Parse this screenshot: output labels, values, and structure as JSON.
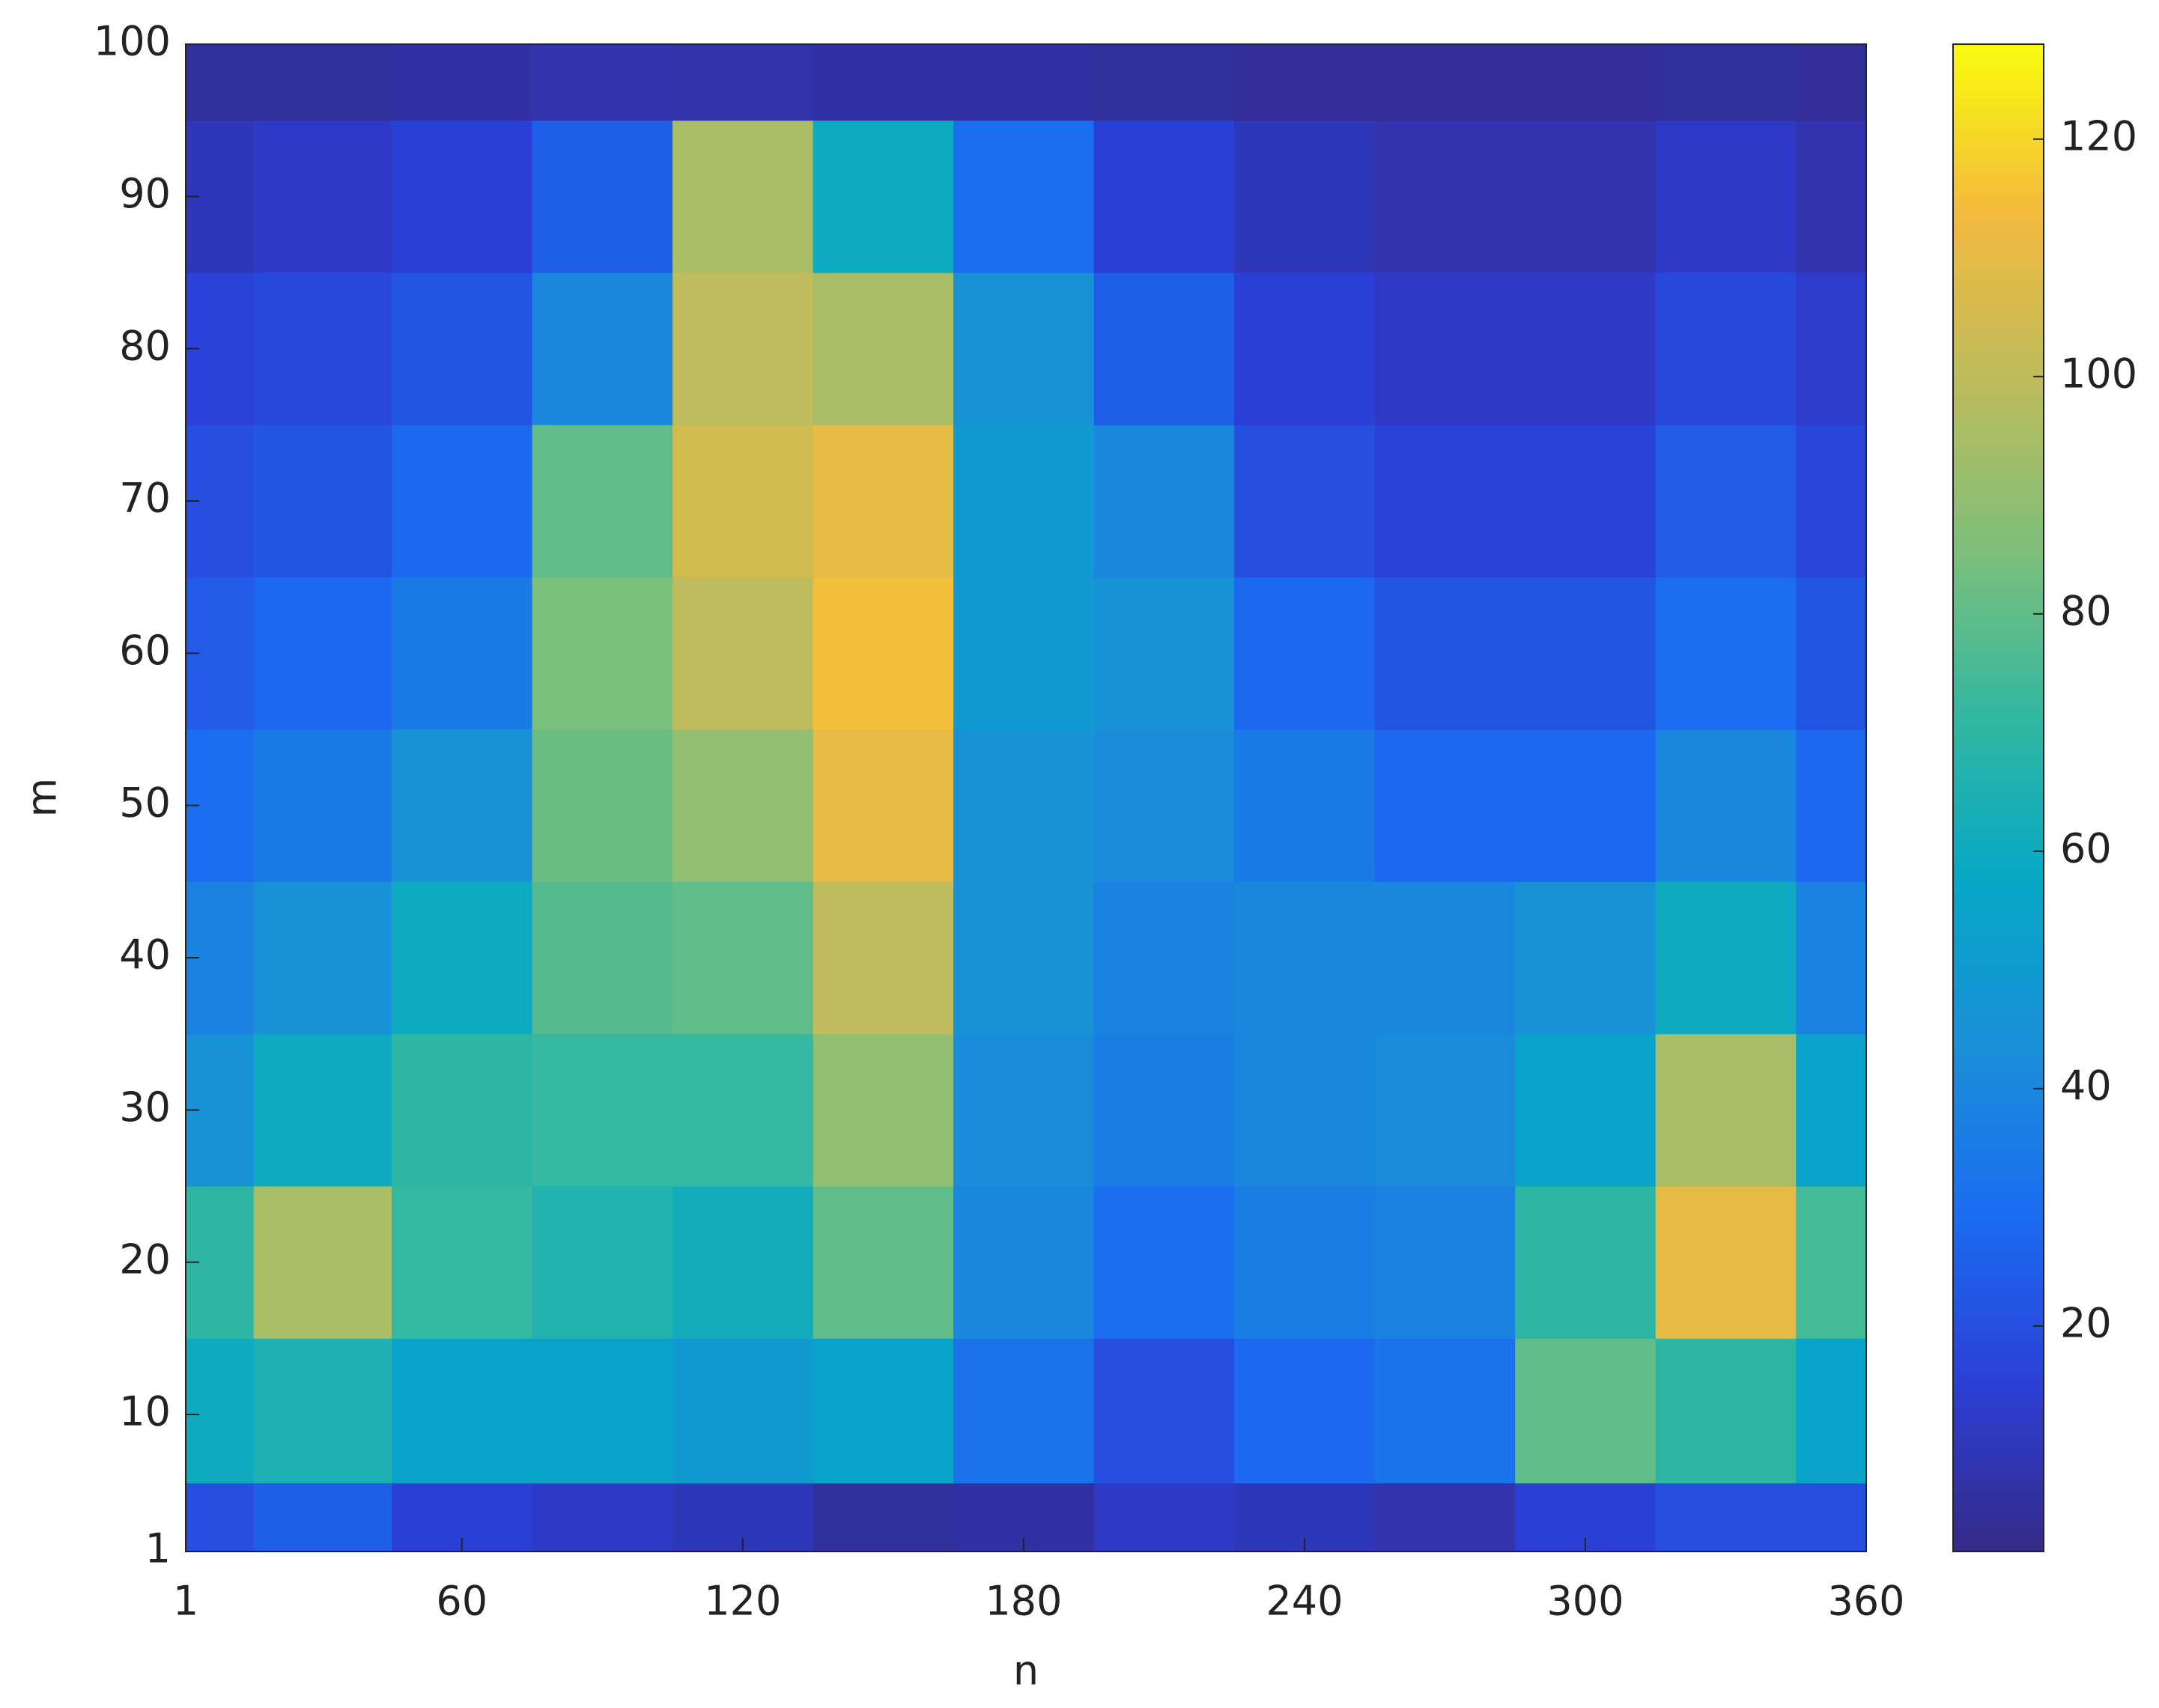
{
  "chart_data": {
    "type": "contourf",
    "xlabel": "n",
    "ylabel": "m",
    "x": [
      1,
      30,
      60,
      90,
      120,
      150,
      180,
      210,
      240,
      270,
      300,
      330,
      360
    ],
    "y": [
      1,
      10,
      20,
      30,
      40,
      50,
      60,
      70,
      80,
      90,
      100
    ],
    "z": [
      [
        20,
        25,
        15,
        12,
        10,
        5,
        6,
        12,
        10,
        8,
        15,
        20,
        20
      ],
      [
        60,
        65,
        55,
        55,
        50,
        55,
        32,
        20,
        28,
        32,
        80,
        70,
        55
      ],
      [
        70,
        95,
        72,
        66,
        62,
        80,
        40,
        30,
        36,
        38,
        70,
        110,
        75
      ],
      [
        45,
        60,
        70,
        72,
        72,
        90,
        42,
        36,
        40,
        42,
        55,
        95,
        55
      ],
      [
        38,
        45,
        60,
        78,
        80,
        100,
        45,
        38,
        40,
        40,
        45,
        60,
        38
      ],
      [
        30,
        35,
        45,
        82,
        90,
        110,
        45,
        42,
        35,
        28,
        28,
        40,
        28
      ],
      [
        24,
        28,
        35,
        85,
        100,
        115,
        50,
        45,
        28,
        22,
        22,
        30,
        22
      ],
      [
        20,
        22,
        28,
        80,
        105,
        110,
        50,
        40,
        20,
        16,
        16,
        24,
        17
      ],
      [
        16,
        18,
        22,
        40,
        100,
        95,
        45,
        25,
        15,
        12,
        12,
        18,
        13
      ],
      [
        10,
        12,
        15,
        25,
        95,
        60,
        30,
        15,
        10,
        8,
        8,
        12,
        8
      ],
      [
        5,
        5,
        6,
        8,
        7,
        6,
        6,
        5,
        4,
        4,
        4,
        5,
        4
      ]
    ],
    "xlim": [
      1,
      360
    ],
    "xticks": [
      1,
      60,
      120,
      180,
      240,
      300,
      360
    ],
    "ylim": [
      1,
      100
    ],
    "yticks": [
      1,
      10,
      20,
      30,
      40,
      50,
      60,
      70,
      80,
      90,
      100
    ],
    "clim": [
      1,
      128
    ],
    "cticks": [
      20,
      40,
      60,
      80,
      100,
      120
    ],
    "colormap": [
      "#352a87",
      "#2c3fd6",
      "#1a6cf0",
      "#1a8fd8",
      "#06a7c6",
      "#32b8a0",
      "#7fbf7a",
      "#bdbc5c",
      "#f4ba3e",
      "#f9fb0e"
    ]
  }
}
